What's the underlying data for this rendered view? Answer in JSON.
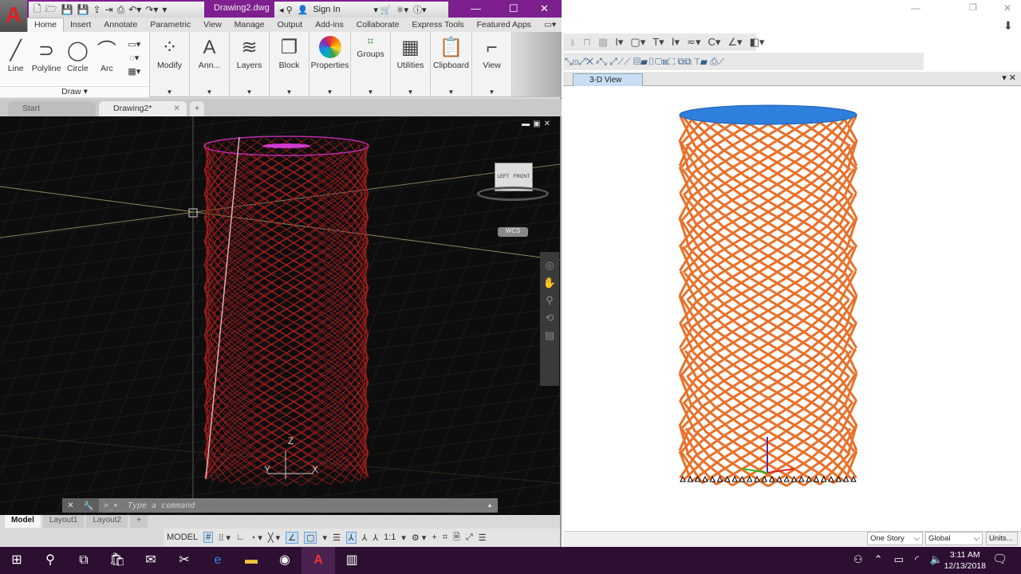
{
  "acad": {
    "doc_title": "Drawing2.dwg",
    "sign_in": "Sign In",
    "ribbon_tabs": [
      "Home",
      "Insert",
      "Annotate",
      "Parametric",
      "View",
      "Manage",
      "Output",
      "Add-ins",
      "Collaborate",
      "Express Tools",
      "Featured Apps"
    ],
    "draw_tools": [
      "Line",
      "Polyline",
      "Circle",
      "Arc"
    ],
    "draw_panel": "Draw",
    "panels": [
      "Modify",
      "Ann...",
      "Layers",
      "Block",
      "Properties",
      "Groups",
      "Utilities",
      "Clipboard",
      "View"
    ],
    "doc_tabs": [
      "Start",
      "Drawing2*"
    ],
    "wcs": "WCS",
    "viewcube": {
      "left": "LEFT",
      "front": "FRONT"
    },
    "axes": {
      "z": "Z",
      "y": "Y",
      "x": "X"
    },
    "command_placeholder": "Type a command",
    "layout_tabs": [
      "Model",
      "Layout1",
      "Layout2"
    ],
    "status": {
      "model": "MODEL",
      "scale": "1:1"
    },
    "wire_color": "#a51e1e"
  },
  "right": {
    "view_tab": "3-D View",
    "story": "One Story",
    "coord": "Global",
    "units": "Units...",
    "frame_color": "#e8712b",
    "top_color": "#2f7fdc"
  },
  "taskbar": {
    "time": "3:11 AM",
    "date": "12/13/2018",
    "accent": "#2c0f31"
  }
}
